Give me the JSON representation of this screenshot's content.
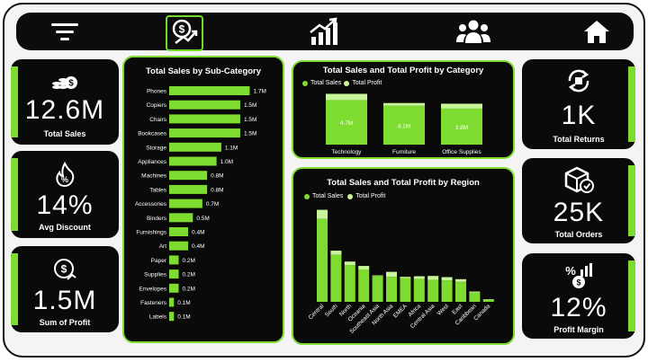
{
  "colors": {
    "accent": "#7ddc2f",
    "profit": "#c8f59a",
    "panel": "#0a0a0a",
    "bg": "#f4f4f4"
  },
  "nav": {
    "items": [
      {
        "name": "menu-icon"
      },
      {
        "name": "sales-icon",
        "active": true
      },
      {
        "name": "growth-chart-icon"
      },
      {
        "name": "users-icon"
      },
      {
        "name": "home-icon"
      }
    ]
  },
  "kpis": {
    "total_sales": {
      "value": "12.6M",
      "label": "Total Sales",
      "icon": "coins-icon"
    },
    "avg_discount": {
      "value": "14%",
      "label": "Avg Discount",
      "icon": "discount-flame-icon"
    },
    "sum_profit": {
      "value": "1.5M",
      "label": "Sum of Profit",
      "icon": "profit-dollar-icon"
    },
    "total_returns": {
      "value": "1K",
      "label": "Total Returns",
      "icon": "returns-icon"
    },
    "total_orders": {
      "value": "25K",
      "label": "Total Orders",
      "icon": "package-check-icon"
    },
    "profit_margin": {
      "value": "12%",
      "label": "Profit Margin",
      "icon": "margin-icon"
    }
  },
  "chart_data": [
    {
      "type": "bar",
      "orientation": "horizontal",
      "title": "Total Sales by Sub-Category",
      "categories": [
        "Phones",
        "Copiers",
        "Chairs",
        "Bookcases",
        "Storage",
        "Appliances",
        "Machines",
        "Tables",
        "Accessories",
        "Binders",
        "Furnishings",
        "Art",
        "Paper",
        "Supplies",
        "Envelopes",
        "Fasteners",
        "Labels"
      ],
      "values": [
        1.7,
        1.5,
        1.5,
        1.5,
        1.1,
        1.0,
        0.8,
        0.8,
        0.7,
        0.5,
        0.4,
        0.4,
        0.2,
        0.2,
        0.2,
        0.1,
        0.1
      ],
      "value_labels": [
        "1.7M",
        "1.5M",
        "1.5M",
        "1.5M",
        "1.1M",
        "1.0M",
        "0.8M",
        "0.8M",
        "0.7M",
        "0.5M",
        "0.4M",
        "0.4M",
        "0.2M",
        "0.2M",
        "0.2M",
        "0.1M",
        "0.1M"
      ],
      "xlim": [
        0,
        1.9
      ]
    },
    {
      "type": "bar",
      "title": "Total Sales and Total Profit by Category",
      "categories": [
        "Technology",
        "Furniture",
        "Office Supplies"
      ],
      "series": [
        {
          "name": "Total Sales",
          "values": [
            4.7,
            4.1,
            3.8
          ]
        },
        {
          "name": "Total Profit",
          "values": [
            0.66,
            0.29,
            0.52
          ]
        }
      ],
      "value_labels": [
        "4.7M",
        "4.1M",
        "3.8M"
      ],
      "ylim": [
        0,
        5.5
      ],
      "legend": "top-left"
    },
    {
      "type": "bar",
      "title": "Total Sales and Total Profit by Region",
      "categories": [
        "Central",
        "South",
        "North",
        "Oceania",
        "Southeast Asia",
        "North Asia",
        "EMEA",
        "Africa",
        "Central Asia",
        "West",
        "East",
        "Caribbean",
        "Canada"
      ],
      "series": [
        {
          "name": "Total Sales",
          "values": [
            2.82,
            1.6,
            1.25,
            1.1,
            0.88,
            0.85,
            0.81,
            0.78,
            0.75,
            0.73,
            0.68,
            0.32,
            0.07
          ]
        },
        {
          "name": "Total Profit",
          "values": [
            0.31,
            0.14,
            0.12,
            0.12,
            0.02,
            0.17,
            0.04,
            0.09,
            0.13,
            0.11,
            0.09,
            0.03,
            0.02
          ]
        }
      ],
      "ylim": [
        0,
        3.3
      ],
      "legend": "top-left"
    }
  ]
}
